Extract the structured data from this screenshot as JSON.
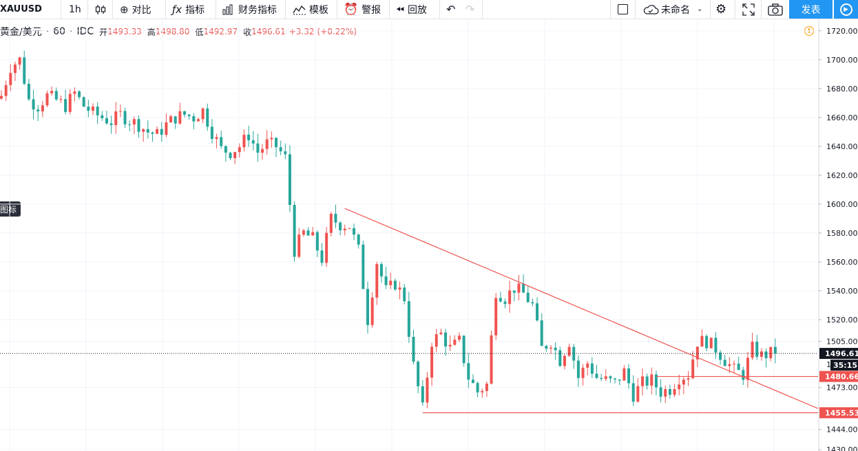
{
  "toolbar": {
    "symbol": "XAUUSD",
    "interval": "1h",
    "compare": "对比",
    "indicators": "指标",
    "financials": "财务指标",
    "templates": "模板",
    "alert": "警报",
    "replay": "回放",
    "chart_name": "未命名",
    "publish": "发表"
  },
  "legend": {
    "title": "黄金/美元",
    "interval": "60",
    "source": "IDC",
    "open_label": "开",
    "open": "1493.33",
    "high_label": "高",
    "high": "1498.80",
    "low_label": "低",
    "low": "1492.97",
    "close_label": "收",
    "close": "1496.61",
    "change": "+3.32",
    "change_pct": "(+0.22%)"
  },
  "side_tab": "图标",
  "chart_data": {
    "type": "candlestick",
    "y_ticks": [
      "1720.00",
      "1700.00",
      "1680.00",
      "1660.00",
      "1640.00",
      "1620.00",
      "1600.00",
      "1580.00",
      "1560.00",
      "1540.00",
      "1520.00",
      "1505.00",
      "1473.00",
      "1444.00",
      "1430.00"
    ],
    "y_tick_values": [
      1720,
      1700,
      1680,
      1660,
      1640,
      1620,
      1600,
      1580,
      1560,
      1540,
      1520,
      1505,
      1473,
      1444,
      1430
    ],
    "ylim": [
      1430,
      1728
    ],
    "price_labels": [
      {
        "text": "1496.61",
        "value": 1496.61,
        "style": "current"
      },
      {
        "text": "35:15",
        "value": 1488.5,
        "style": "timer"
      },
      {
        "text": "1480.66",
        "value": 1480.66,
        "style": "level"
      },
      {
        "text": "1455.53",
        "value": 1455.53,
        "style": "level"
      }
    ],
    "horizontal_levels": [
      {
        "value": 1480.66,
        "from_index": 143
      },
      {
        "value": 1455.53,
        "from_index": 92
      }
    ],
    "trendline": {
      "from": {
        "index": 75,
        "value": 1597
      },
      "to": {
        "index": 169,
        "value": 1471
      }
    },
    "current_price": 1496.61,
    "colors": {
      "up": "#ef5350",
      "down": "#26a69a",
      "trend": "#ef5350",
      "level": "#ef5350",
      "grid": "#f0f3fa"
    },
    "anchors": [
      [
        0,
        1675
      ],
      [
        2,
        1695
      ],
      [
        4,
        1700
      ],
      [
        6,
        1672
      ],
      [
        8,
        1668
      ],
      [
        10,
        1675
      ],
      [
        12,
        1672
      ],
      [
        14,
        1668
      ],
      [
        16,
        1677
      ],
      [
        18,
        1668
      ],
      [
        20,
        1663
      ],
      [
        22,
        1660
      ],
      [
        24,
        1657
      ],
      [
        26,
        1662
      ],
      [
        28,
        1658
      ],
      [
        30,
        1655
      ],
      [
        32,
        1650
      ],
      [
        34,
        1648
      ],
      [
        36,
        1655
      ],
      [
        38,
        1660
      ],
      [
        40,
        1662
      ],
      [
        42,
        1660
      ],
      [
        44,
        1665
      ],
      [
        46,
        1650
      ],
      [
        48,
        1638
      ],
      [
        50,
        1636
      ],
      [
        52,
        1640
      ],
      [
        54,
        1648
      ],
      [
        56,
        1636
      ],
      [
        58,
        1642
      ],
      [
        60,
        1640
      ],
      [
        62,
        1632
      ],
      [
        64,
        1568
      ],
      [
        66,
        1580
      ],
      [
        68,
        1576
      ],
      [
        70,
        1562
      ],
      [
        72,
        1590
      ],
      [
        74,
        1586
      ],
      [
        76,
        1585
      ],
      [
        78,
        1568
      ],
      [
        80,
        1520
      ],
      [
        82,
        1560
      ],
      [
        84,
        1540
      ],
      [
        86,
        1545
      ],
      [
        88,
        1535
      ],
      [
        90,
        1488
      ],
      [
        92,
        1458
      ],
      [
        94,
        1505
      ],
      [
        96,
        1510
      ],
      [
        98,
        1500
      ],
      [
        100,
        1505
      ],
      [
        102,
        1480
      ],
      [
        104,
        1470
      ],
      [
        106,
        1475
      ],
      [
        108,
        1540
      ],
      [
        110,
        1535
      ],
      [
        112,
        1542
      ],
      [
        114,
        1538
      ],
      [
        116,
        1530
      ],
      [
        118,
        1500
      ],
      [
        120,
        1505
      ],
      [
        122,
        1492
      ],
      [
        124,
        1505
      ],
      [
        126,
        1480
      ],
      [
        128,
        1490
      ],
      [
        130,
        1480
      ],
      [
        132,
        1478
      ],
      [
        134,
        1476
      ],
      [
        136,
        1484
      ],
      [
        138,
        1468
      ],
      [
        140,
        1476
      ],
      [
        142,
        1478
      ],
      [
        144,
        1470
      ],
      [
        146,
        1472
      ],
      [
        148,
        1480
      ],
      [
        150,
        1482
      ],
      [
        152,
        1505
      ],
      [
        154,
        1505
      ],
      [
        156,
        1500
      ],
      [
        158,
        1492
      ],
      [
        160,
        1485
      ],
      [
        162,
        1482
      ],
      [
        164,
        1500
      ],
      [
        166,
        1495
      ],
      [
        168,
        1496.61
      ]
    ]
  }
}
